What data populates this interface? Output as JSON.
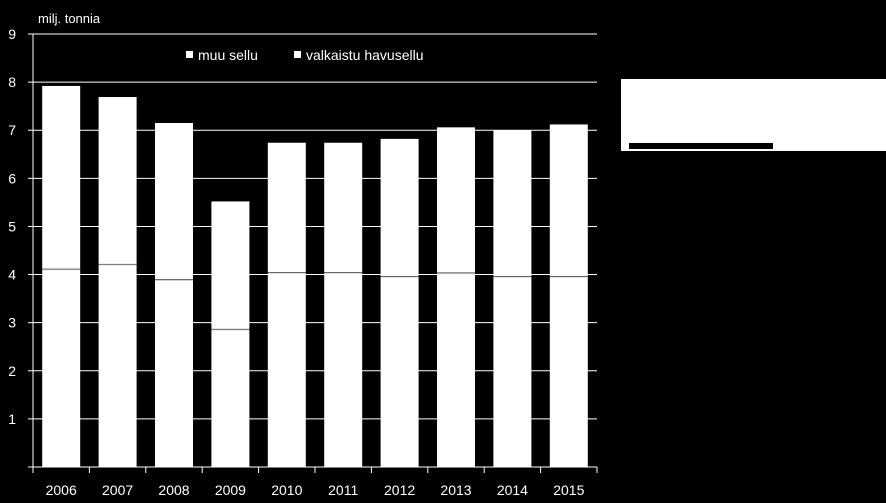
{
  "chart_data": {
    "type": "bar",
    "stacked": true,
    "ylabel": "milj. tonnia",
    "ylim": [
      0,
      9
    ],
    "yticks": [
      "1",
      "2",
      "3",
      "4",
      "5",
      "6",
      "7",
      "8",
      "9"
    ],
    "ytick_values": [
      1,
      2,
      3,
      4,
      5,
      6,
      7,
      8,
      9
    ],
    "grid": true,
    "legend_position": "top",
    "categories": [
      "2006",
      "2007",
      "2008",
      "2009",
      "2010",
      "2011",
      "2012",
      "2013",
      "2014",
      "2015"
    ],
    "series": [
      {
        "name": "valkaistu havusellu",
        "values": [
          4.1,
          4.2,
          3.88,
          2.85,
          4.03,
          4.03,
          3.95,
          4.02,
          3.95,
          3.95
        ],
        "color": "#ffffff"
      },
      {
        "name": "muu sellu",
        "values": [
          3.82,
          3.49,
          3.27,
          2.67,
          2.71,
          2.71,
          2.87,
          3.04,
          3.05,
          3.17
        ],
        "color": "#ffffff"
      }
    ],
    "legend": [
      "muu sellu",
      "valkaistu havusellu"
    ],
    "colors": {
      "background": "#000000",
      "bar": "#ffffff",
      "gridline": "#ffffff",
      "text": "#ffffff"
    }
  }
}
